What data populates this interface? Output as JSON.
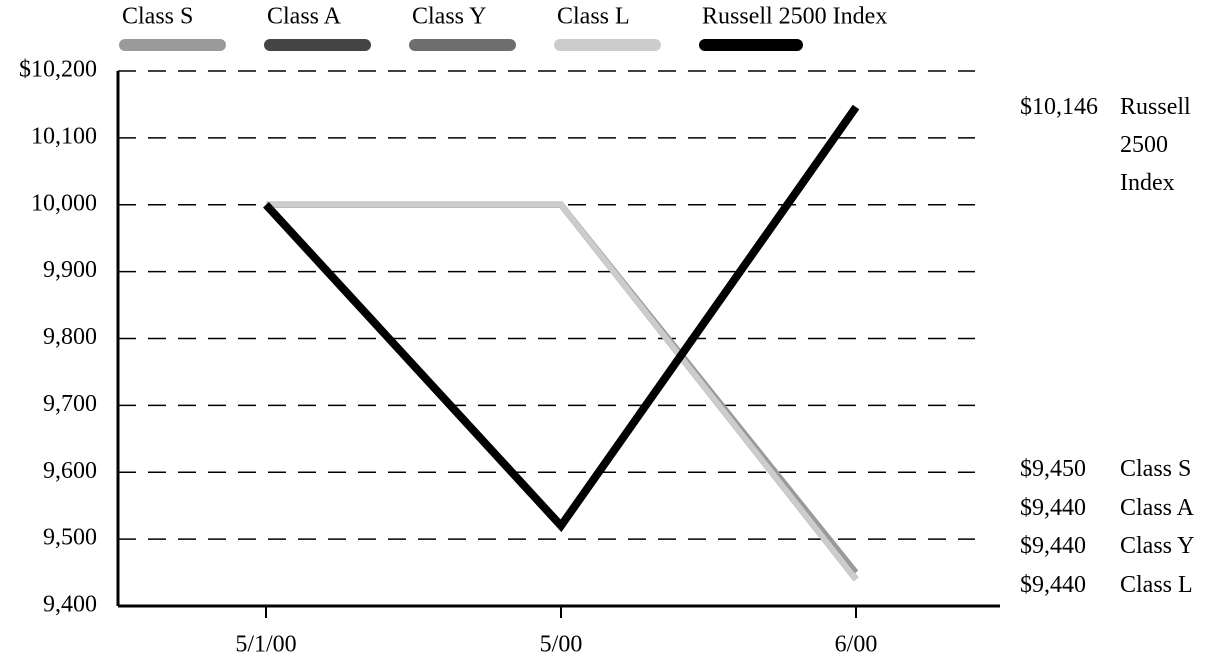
{
  "chart_data": {
    "type": "line",
    "categories": [
      "5/1/00",
      "5/00",
      "6/00"
    ],
    "series": [
      {
        "name": "Class S",
        "color": "#9a9a9a",
        "values": [
          10000,
          10000,
          9450
        ],
        "value_labels": [
          null,
          null,
          "$9,450"
        ]
      },
      {
        "name": "Class A",
        "color": "#444444",
        "values": [
          10000,
          10000,
          9440
        ],
        "value_labels": [
          null,
          null,
          "$9,440"
        ]
      },
      {
        "name": "Class Y",
        "color": "#6e6e6e",
        "values": [
          10000,
          10000,
          9440
        ],
        "value_labels": [
          null,
          null,
          "$9,440"
        ]
      },
      {
        "name": "Class L",
        "color": "#cccccc",
        "values": [
          10000,
          10000,
          9440
        ],
        "value_labels": [
          null,
          null,
          "$9,440"
        ]
      },
      {
        "name": "Russell 2500 Index",
        "color": "#000000",
        "values": [
          10000,
          9520,
          10146
        ],
        "value_labels": [
          null,
          null,
          "$10,146"
        ]
      }
    ],
    "ylim": [
      9400,
      10200
    ],
    "yticks": [
      {
        "value": 9400,
        "label": "9,400"
      },
      {
        "value": 9500,
        "label": "9,500"
      },
      {
        "value": 9600,
        "label": "9,600"
      },
      {
        "value": 9700,
        "label": "9,700"
      },
      {
        "value": 9800,
        "label": "9,800"
      },
      {
        "value": 9900,
        "label": "9,900"
      },
      {
        "value": 10000,
        "label": "10,000"
      },
      {
        "value": 10100,
        "label": "10,100"
      },
      {
        "value": 10200,
        "label": "$10,200"
      }
    ],
    "grid": true,
    "legend": "top"
  }
}
